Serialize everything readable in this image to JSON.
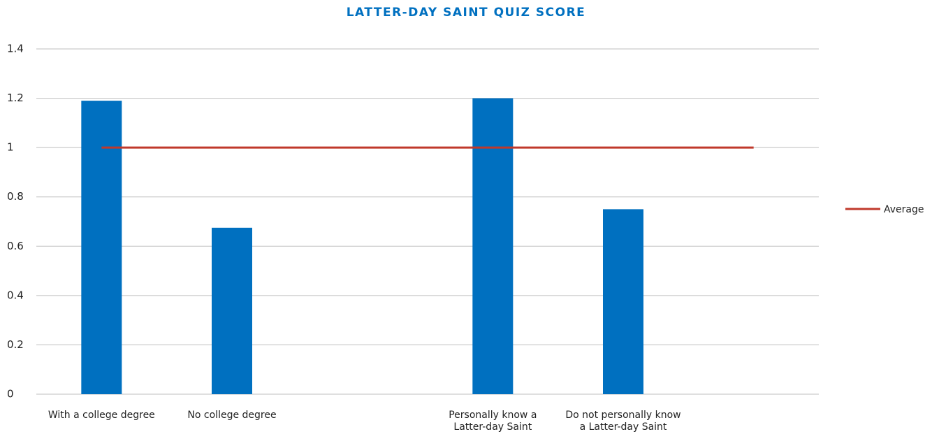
{
  "chart_data": {
    "type": "bar",
    "title": "LATTER-DAY SAINT QUIZ SCORE",
    "categories": [
      "With a college degree",
      "No college degree",
      null,
      "Personally know a Latter-day Saint",
      "Do not personally know a Latter-day Saint",
      null
    ],
    "series": [
      {
        "color": "#0070c0",
        "values": [
          1.19,
          0.675,
          null,
          1.2,
          0.75,
          null
        ]
      },
      {
        "name": "Average",
        "type": "line",
        "color": "#c0392b",
        "values": [
          1,
          1,
          1,
          1,
          1,
          1
        ]
      }
    ],
    "ylim": [
      0,
      1.4
    ],
    "yticks": [
      0,
      0.2,
      0.4,
      0.6,
      0.8,
      1,
      1.2,
      1.4
    ],
    "grid": true,
    "legend": "right"
  }
}
